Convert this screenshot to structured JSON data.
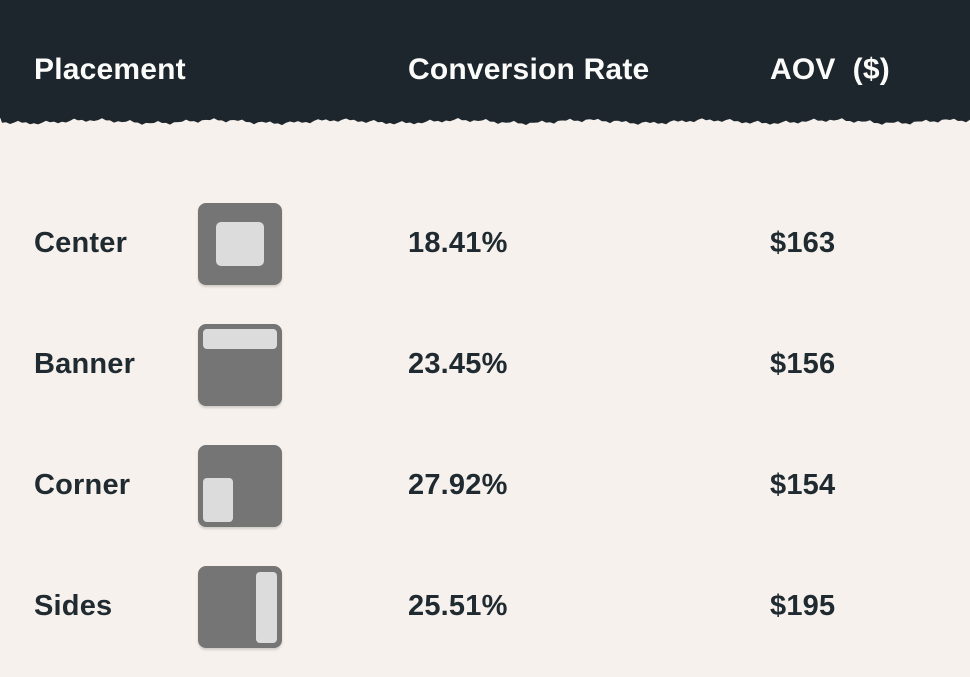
{
  "colors": {
    "header_bg": "#1d262c",
    "header_text": "#fbfbfa",
    "body_bg": "#f6f1ec",
    "body_text": "#202b31",
    "icon_gray": "#757575",
    "icon_light": "#dcdcdc"
  },
  "chart_data": {
    "type": "table",
    "title": "",
    "columns": [
      "Placement",
      "Conversion Rate",
      "AOV  ($)"
    ],
    "rows": [
      {
        "placement": "Center",
        "icon": "center-placement-icon",
        "conversion_rate": "18.41%",
        "conversion_rate_pct": 18.41,
        "aov": "$163",
        "aov_usd": 163
      },
      {
        "placement": "Banner",
        "icon": "banner-placement-icon",
        "conversion_rate": "23.45%",
        "conversion_rate_pct": 23.45,
        "aov": "$156",
        "aov_usd": 156
      },
      {
        "placement": "Corner",
        "icon": "corner-placement-icon",
        "conversion_rate": "27.92%",
        "conversion_rate_pct": 27.92,
        "aov": "$154",
        "aov_usd": 154
      },
      {
        "placement": "Sides",
        "icon": "sides-placement-icon",
        "conversion_rate": "25.51%",
        "conversion_rate_pct": 25.51,
        "aov": "$195",
        "aov_usd": 195
      }
    ]
  }
}
